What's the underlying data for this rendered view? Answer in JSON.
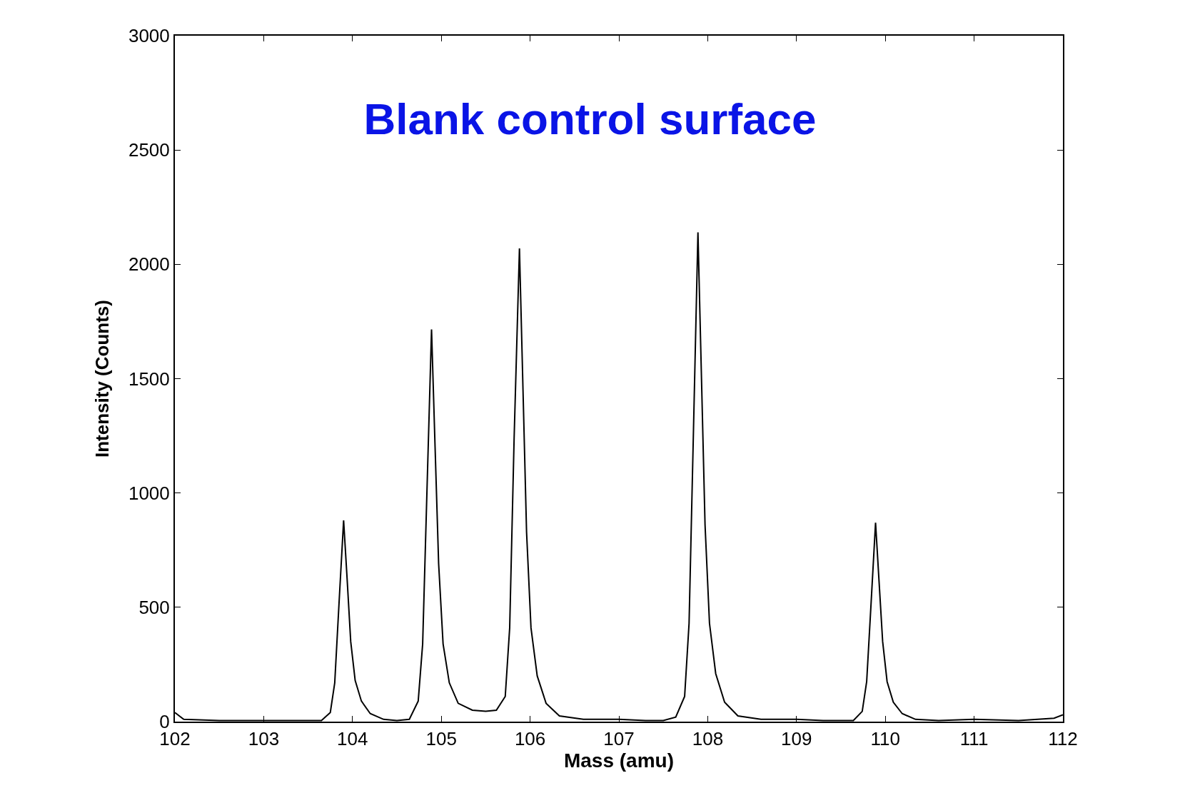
{
  "chart_data": {
    "type": "line",
    "title": "Blank control surface",
    "xlabel": "Mass (amu)",
    "ylabel": "Intensity (Counts)",
    "x": [
      102,
      102.1,
      102.5,
      103,
      103.5,
      103.65,
      103.75,
      103.8,
      103.85,
      103.9,
      103.94,
      103.98,
      104.03,
      104.1,
      104.2,
      104.35,
      104.5,
      104.64,
      104.74,
      104.79,
      104.84,
      104.89,
      104.93,
      104.97,
      105.02,
      105.09,
      105.19,
      105.35,
      105.5,
      105.62,
      105.72,
      105.77,
      105.82,
      105.88,
      105.92,
      105.96,
      106.01,
      106.08,
      106.18,
      106.33,
      106.6,
      107,
      107.3,
      107.5,
      107.64,
      107.74,
      107.79,
      107.84,
      107.89,
      107.93,
      107.97,
      108.02,
      108.09,
      108.19,
      108.34,
      108.6,
      109,
      109.3,
      109.5,
      109.64,
      109.74,
      109.79,
      109.84,
      109.89,
      109.93,
      109.97,
      110.02,
      110.09,
      110.19,
      110.34,
      110.6,
      111,
      111.5,
      111.9,
      112
    ],
    "series": [
      {
        "color": "#000000",
        "values": [
          40,
          10,
          5,
          5,
          5,
          5,
          40,
          170,
          530,
          880,
          620,
          350,
          180,
          90,
          35,
          10,
          5,
          10,
          90,
          340,
          1030,
          1715,
          1200,
          690,
          340,
          170,
          80,
          50,
          45,
          50,
          110,
          410,
          1240,
          2070,
          1450,
          830,
          410,
          200,
          80,
          25,
          10,
          10,
          5,
          5,
          20,
          110,
          430,
          1280,
          2140,
          1500,
          860,
          430,
          210,
          85,
          25,
          10,
          10,
          5,
          5,
          5,
          45,
          175,
          520,
          870,
          610,
          350,
          175,
          85,
          35,
          10,
          5,
          10,
          5,
          15,
          30
        ]
      }
    ],
    "xlim": [
      102,
      112
    ],
    "xticks": [
      102,
      103,
      104,
      105,
      106,
      107,
      108,
      109,
      110,
      111,
      112
    ],
    "ylim": [
      0,
      3000
    ],
    "yticks": [
      0,
      500,
      1000,
      1500,
      2000,
      2500,
      3000
    ],
    "grid": false,
    "marker": "none",
    "line_style": "solid"
  }
}
